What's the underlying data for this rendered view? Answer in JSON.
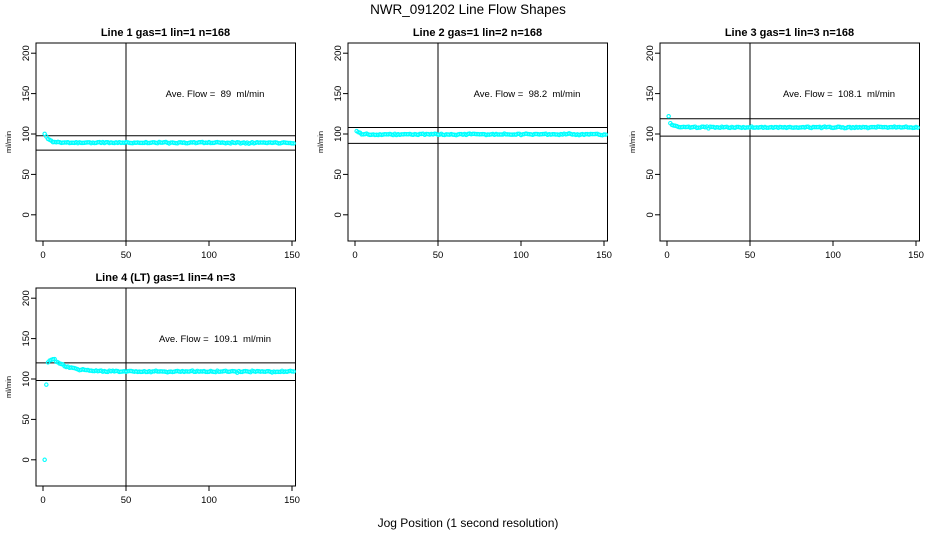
{
  "page": {
    "title": "NWR_091202  Line Flow Shapes",
    "xlabel": "Jog Position (1 second resolution)"
  },
  "chart_data": [
    {
      "type": "scatter",
      "title": "Line 1 gas=1 lin=1 n=168",
      "annotation": "Ave. Flow =  89  ml/min",
      "ave_flow": 89,
      "ylabel": "ml/min",
      "x_ticks": [
        0,
        50,
        100,
        150
      ],
      "y_ticks": [
        0,
        50,
        100,
        150,
        200
      ],
      "xlim": [
        -4.5,
        152.5
      ],
      "ylim": [
        -30,
        217
      ],
      "vline_x": 50,
      "hlines": [
        97.9,
        80.1
      ],
      "marker": "open-circle",
      "marker_color": "#00ffff",
      "grid": false,
      "series_model": {
        "pre_points": [],
        "x_first": 1,
        "x_last": 151,
        "start": 100,
        "peak": 100,
        "peak_x": 1,
        "settle": 89.3,
        "tau": 2.5,
        "noise": 0.9
      }
    },
    {
      "type": "scatter",
      "title": "Line 2 gas=1 lin=2 n=168",
      "annotation": "Ave. Flow =  98.2  ml/min",
      "ave_flow": 98.2,
      "ylabel": "ml/min",
      "x_ticks": [
        0,
        50,
        100,
        150
      ],
      "y_ticks": [
        0,
        50,
        100,
        150,
        200
      ],
      "xlim": [
        -4.5,
        152.5
      ],
      "ylim": [
        -30,
        217
      ],
      "vline_x": 50,
      "hlines": [
        108.0,
        88.4
      ],
      "marker": "open-circle",
      "marker_color": "#00ffff",
      "grid": false,
      "series_model": {
        "pre_points": [],
        "x_first": 1,
        "x_last": 151,
        "start": 104,
        "peak": 104,
        "peak_x": 1,
        "settle": 99.6,
        "tau": 2.0,
        "noise": 0.9
      }
    },
    {
      "type": "scatter",
      "title": "Line 3 gas=1 lin=3 n=168",
      "annotation": "Ave. Flow =  108.1  ml/min",
      "ave_flow": 108.1,
      "ylabel": "ml/min",
      "x_ticks": [
        0,
        50,
        100,
        150
      ],
      "y_ticks": [
        0,
        50,
        100,
        150,
        200
      ],
      "xlim": [
        -4.5,
        152.5
      ],
      "ylim": [
        -30,
        217
      ],
      "vline_x": 50,
      "hlines": [
        118.9,
        97.3
      ],
      "marker": "open-circle",
      "marker_color": "#00ffff",
      "grid": false,
      "series_model": {
        "pre_points": [
          [
            1,
            122
          ]
        ],
        "x_first": 2,
        "x_last": 151,
        "start": 113,
        "peak": 113,
        "peak_x": 2,
        "settle": 108.2,
        "tau": 2.5,
        "noise": 0.9
      }
    },
    {
      "type": "scatter",
      "title": "Line 4 (LT) gas=1 lin=4 n=3",
      "annotation": "Ave. Flow =  109.1  ml/min",
      "ave_flow": 109.1,
      "ylabel": "ml/min",
      "x_ticks": [
        0,
        50,
        100,
        150
      ],
      "y_ticks": [
        0,
        50,
        100,
        150,
        200
      ],
      "xlim": [
        -4.5,
        152.5
      ],
      "ylim": [
        -30,
        217
      ],
      "vline_x": 50,
      "hlines": [
        120.0,
        98.2
      ],
      "marker": "open-circle",
      "marker_color": "#00ffff",
      "grid": false,
      "series_model": {
        "pre_points": [
          [
            1,
            0
          ],
          [
            2,
            93
          ]
        ],
        "x_first": 3,
        "x_last": 151,
        "start": 121,
        "peak": 125,
        "peak_x": 6,
        "settle": 109.2,
        "tau": 9,
        "noise": 1.1
      }
    }
  ]
}
